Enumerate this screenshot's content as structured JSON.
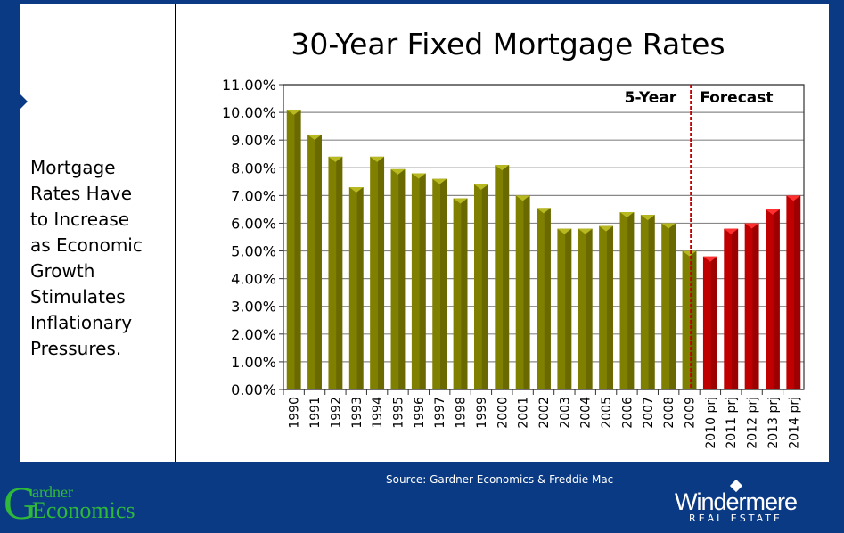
{
  "sidebar_text": [
    "Mortgage",
    "Rates Have",
    "to Increase",
    "as Economic",
    "Growth",
    "Stimulates",
    "Inflationary",
    "Pressures."
  ],
  "source": "Source: Gardner Economics & Freddie Mac",
  "logos": {
    "left": "Gardner Economics",
    "right": "Windermere Real Estate"
  },
  "chart_data": {
    "type": "bar",
    "title": "30-Year Fixed Mortgage Rates",
    "categories": [
      "1990",
      "1991",
      "1992",
      "1993",
      "1994",
      "1995",
      "1996",
      "1997",
      "1998",
      "1999",
      "2000",
      "2001",
      "2002",
      "2003",
      "2004",
      "2005",
      "2006",
      "2007",
      "2008",
      "2009",
      "2010 prj",
      "2011 prj",
      "2012 prj",
      "2013 prj",
      "2014 prj"
    ],
    "values": [
      10.1,
      9.2,
      8.4,
      7.3,
      8.4,
      7.95,
      7.8,
      7.6,
      6.9,
      7.4,
      8.1,
      7.0,
      6.55,
      5.8,
      5.8,
      5.9,
      6.4,
      6.3,
      6.0,
      5.0,
      4.8,
      5.8,
      6.0,
      6.5,
      7.0
    ],
    "forecast_from_index": 20,
    "ylim": [
      0,
      11
    ],
    "yticks": [
      "0.00%",
      "1.00%",
      "2.00%",
      "3.00%",
      "4.00%",
      "5.00%",
      "6.00%",
      "7.00%",
      "8.00%",
      "9.00%",
      "10.00%",
      "11.00%"
    ],
    "grid": true,
    "annotations": [
      "5-Year",
      "Forecast"
    ],
    "colors": {
      "historical": "#808000",
      "forecast": "#c00000",
      "divider": "#c00000"
    }
  }
}
